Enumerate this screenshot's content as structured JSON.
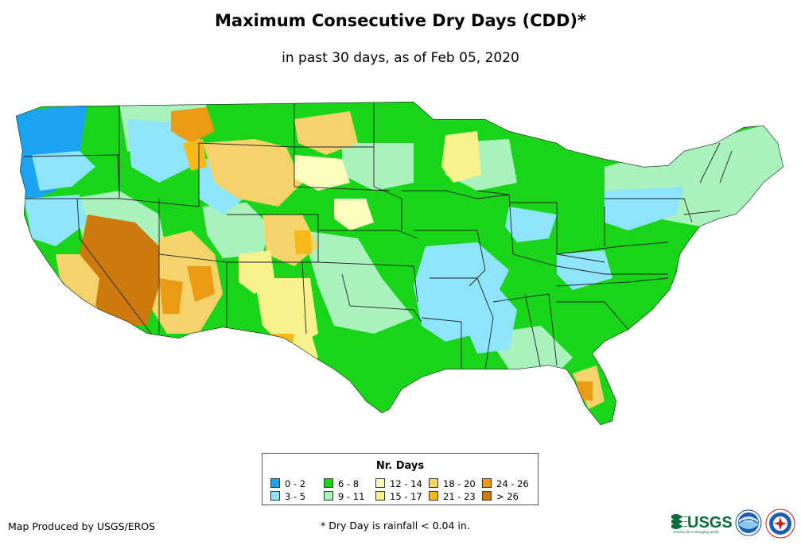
{
  "title": "Maximum Consecutive Dry Days (CDD)*",
  "subtitle": "in past 30 days, as of Feb 05, 2020",
  "legend": {
    "title": "Nr. Days",
    "items": [
      {
        "label": "0 - 2",
        "color": "#1aa3f0"
      },
      {
        "label": "3 - 5",
        "color": "#8ee4fb"
      },
      {
        "label": "6 - 8",
        "color": "#19d519"
      },
      {
        "label": "9 - 11",
        "color": "#a9f2be"
      },
      {
        "label": "12 - 14",
        "color": "#fcfcbf"
      },
      {
        "label": "15 - 17",
        "color": "#f6f38c"
      },
      {
        "label": "18 - 20",
        "color": "#f4d36a"
      },
      {
        "label": "21 - 23",
        "color": "#f7b918"
      },
      {
        "label": "24 - 26",
        "color": "#eb9a16"
      },
      {
        "label": "> 26",
        "color": "#cc7a0c"
      }
    ]
  },
  "producer": "Map Produced by USGS/EROS",
  "footnote": "* Dry Day is rainfall < 0.04 in.",
  "logos": {
    "usgs_text": "USGS",
    "usgs_tagline": "science for a changing world",
    "noaa_text": "noaa"
  }
}
